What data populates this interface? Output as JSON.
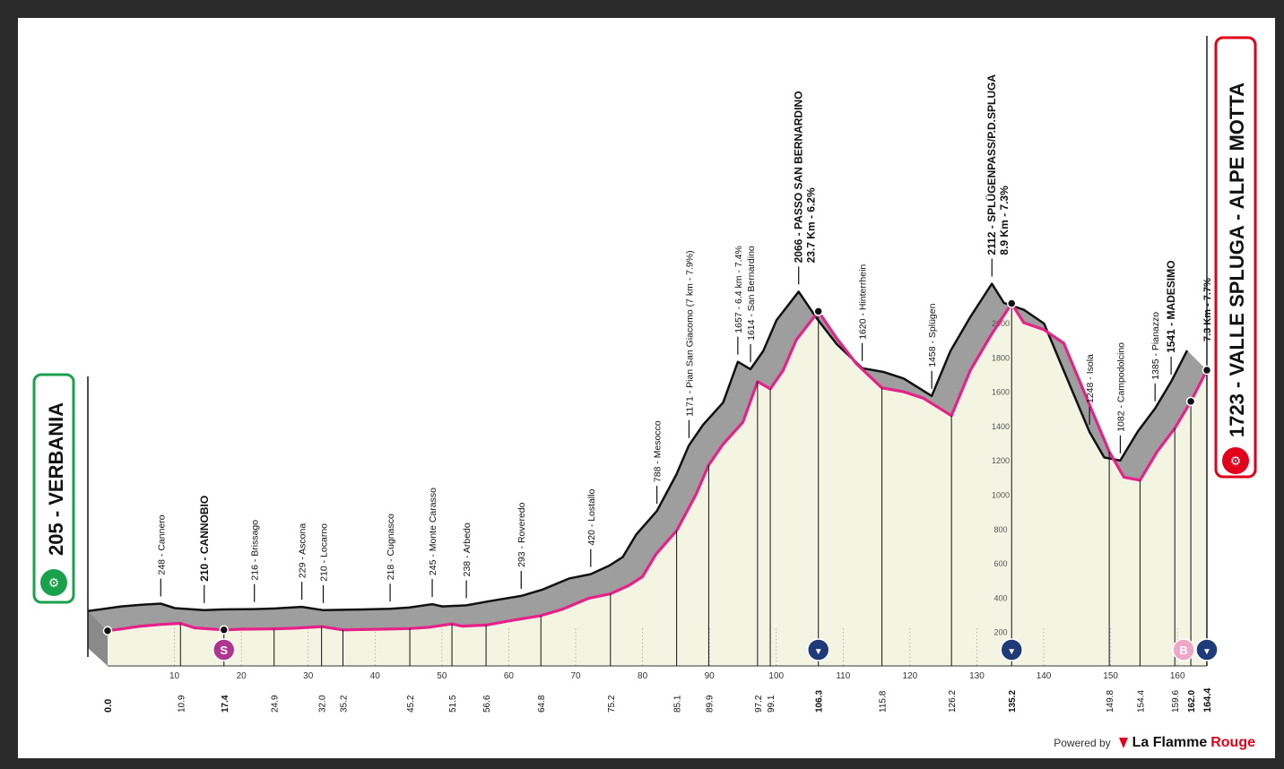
{
  "chart_data": {
    "type": "area",
    "xlim": [
      0,
      164.4
    ],
    "ylim": [
      0,
      2200
    ],
    "y_ticks": [
      200,
      400,
      600,
      800,
      1000,
      1200,
      1400,
      1600,
      1800,
      2000
    ],
    "x_ticks": [
      10,
      20,
      30,
      40,
      50,
      60,
      70,
      80,
      90,
      100,
      110,
      120,
      130,
      140,
      150,
      160
    ],
    "profile": [
      [
        0,
        205
      ],
      [
        2,
        215
      ],
      [
        5,
        232
      ],
      [
        8,
        242
      ],
      [
        10.9,
        248
      ],
      [
        13,
        222
      ],
      [
        17.4,
        210
      ],
      [
        20,
        214
      ],
      [
        24.9,
        216
      ],
      [
        28,
        220
      ],
      [
        32,
        229
      ],
      [
        35.2,
        210
      ],
      [
        38,
        212
      ],
      [
        41,
        214
      ],
      [
        45.2,
        218
      ],
      [
        48,
        225
      ],
      [
        51.5,
        245
      ],
      [
        53,
        232
      ],
      [
        56.6,
        238
      ],
      [
        60,
        262
      ],
      [
        64.8,
        293
      ],
      [
        68,
        330
      ],
      [
        72,
        395
      ],
      [
        75.2,
        420
      ],
      [
        78,
        470
      ],
      [
        80,
        520
      ],
      [
        82,
        650
      ],
      [
        85.1,
        788
      ],
      [
        88,
        1000
      ],
      [
        89.9,
        1171
      ],
      [
        92,
        1290
      ],
      [
        95,
        1420
      ],
      [
        97.2,
        1657
      ],
      [
        99.1,
        1614
      ],
      [
        101,
        1720
      ],
      [
        103,
        1900
      ],
      [
        106.3,
        2066
      ],
      [
        109,
        1910
      ],
      [
        112,
        1760
      ],
      [
        115.8,
        1620
      ],
      [
        119,
        1598
      ],
      [
        122,
        1560
      ],
      [
        126.2,
        1458
      ],
      [
        129,
        1720
      ],
      [
        132,
        1920
      ],
      [
        135.2,
        2112
      ],
      [
        137,
        2000
      ],
      [
        140,
        1960
      ],
      [
        143,
        1880
      ],
      [
        146,
        1600
      ],
      [
        149.8,
        1248
      ],
      [
        152,
        1100
      ],
      [
        154.4,
        1082
      ],
      [
        157,
        1250
      ],
      [
        159.6,
        1385
      ],
      [
        162,
        1541
      ],
      [
        164.4,
        1723
      ]
    ],
    "start": {
      "km": "0.0",
      "elev": "205",
      "name": "VERBANIA"
    },
    "finish": {
      "km": "164.4",
      "elev": "1723",
      "name": "VALLE SPLUGA - ALPE MOTTA",
      "climb": "7.3 Km - 7.7%"
    },
    "places": [
      {
        "km": 10.9,
        "elev": 248,
        "text": "248 - Cannero",
        "bold": false,
        "km_label": "10.9",
        "extra": ""
      },
      {
        "km": 17.4,
        "elev": 210,
        "text": "210 - CANNOBIO",
        "bold": true,
        "km_label": "17.4",
        "extra": ""
      },
      {
        "km": 24.9,
        "elev": 216,
        "text": "216 - Brissago",
        "bold": false,
        "km_label": "24.9",
        "extra": ""
      },
      {
        "km": 32.0,
        "elev": 229,
        "text": "229 - Ascona",
        "bold": false,
        "km_label": "32.0",
        "extra": ""
      },
      {
        "km": 35.2,
        "elev": 210,
        "text": "210 - Locarno",
        "bold": false,
        "km_label": "35.2",
        "extra": ""
      },
      {
        "km": 45.2,
        "elev": 218,
        "text": "218 - Cugnasco",
        "bold": false,
        "km_label": "45.2",
        "extra": ""
      },
      {
        "km": 51.5,
        "elev": 245,
        "text": "245 - Monte Carasso",
        "bold": false,
        "km_label": "51.5",
        "extra": ""
      },
      {
        "km": 56.6,
        "elev": 238,
        "text": "238 - Arbedo",
        "bold": false,
        "km_label": "56.6",
        "extra": ""
      },
      {
        "km": 64.8,
        "elev": 293,
        "text": "293 - Roveredo",
        "bold": false,
        "km_label": "64.8",
        "extra": ""
      },
      {
        "km": 75.2,
        "elev": 420,
        "text": "420 - Lostallo",
        "bold": false,
        "km_label": "75.2",
        "extra": ""
      },
      {
        "km": 85.1,
        "elev": 788,
        "text": "788 - Mesocco",
        "bold": false,
        "km_label": "85.1",
        "extra": ""
      },
      {
        "km": 89.9,
        "elev": 1171,
        "text": "1171 - Pian San Giacomo (7 km - 7.9%)",
        "bold": false,
        "km_label": "89.9",
        "extra": ""
      },
      {
        "km": 97.2,
        "elev": 1657,
        "text": "1657 - 6.4 km - 7.4%",
        "bold": false,
        "km_label": "97.2",
        "extra": ""
      },
      {
        "km": 99.1,
        "elev": 1614,
        "text": "1614 - San Bernardino",
        "bold": false,
        "km_label": "99.1",
        "extra": ""
      },
      {
        "km": 106.3,
        "elev": 2066,
        "text": "2066 - PASSO SAN BERNARDINO",
        "bold": true,
        "km_label": "106.3",
        "extra": "23.7 Km - 6.2%"
      },
      {
        "km": 115.8,
        "elev": 1620,
        "text": "1620 - Hinterrhein",
        "bold": false,
        "km_label": "115.8",
        "extra": ""
      },
      {
        "km": 126.2,
        "elev": 1458,
        "text": "1458 - Splügen",
        "bold": false,
        "km_label": "126.2",
        "extra": ""
      },
      {
        "km": 135.2,
        "elev": 2112,
        "text": "2112 - SPLÜGENPASS/P.D.SPLUGA",
        "bold": true,
        "km_label": "135.2",
        "extra": "8.9 Km - 7.3%"
      },
      {
        "km": 149.8,
        "elev": 1248,
        "text": "1248 - Isola",
        "bold": false,
        "km_label": "149.8",
        "extra": ""
      },
      {
        "km": 154.4,
        "elev": 1082,
        "text": "1082 - Campodolcino",
        "bold": false,
        "km_label": "154.4",
        "extra": ""
      },
      {
        "km": 159.6,
        "elev": 1385,
        "text": "1385 - Pianazzo",
        "bold": false,
        "km_label": "159.6",
        "extra": ""
      },
      {
        "km": 162.0,
        "elev": 1541,
        "text": "1541 - MADESIMO",
        "bold": true,
        "km_label": "162.0",
        "extra": ""
      }
    ],
    "markers": [
      {
        "km": 17.4,
        "symbol": "S",
        "kind": "sprint"
      },
      {
        "km": 106.3,
        "symbol": "▼",
        "kind": "kom"
      },
      {
        "km": 135.2,
        "symbol": "▼",
        "kind": "kom"
      },
      {
        "km": 162.0,
        "symbol": "B",
        "kind": "bonus"
      },
      {
        "km": 164.4,
        "symbol": "▼",
        "kind": "kom"
      }
    ],
    "colors": {
      "fill": "#f3f5e2",
      "top_band": "#9e9e9e",
      "road": "#e6228a",
      "outline": "#111111",
      "start_green": "#1aa14b",
      "finish_red": "#e2001a",
      "sprint": "#b0358f",
      "kom": "#1f3a78",
      "bonus": "#f0a6c6"
    }
  },
  "credit": {
    "powered": "Powered by",
    "brand_a": "La Flamme",
    "brand_b": "Rouge"
  }
}
